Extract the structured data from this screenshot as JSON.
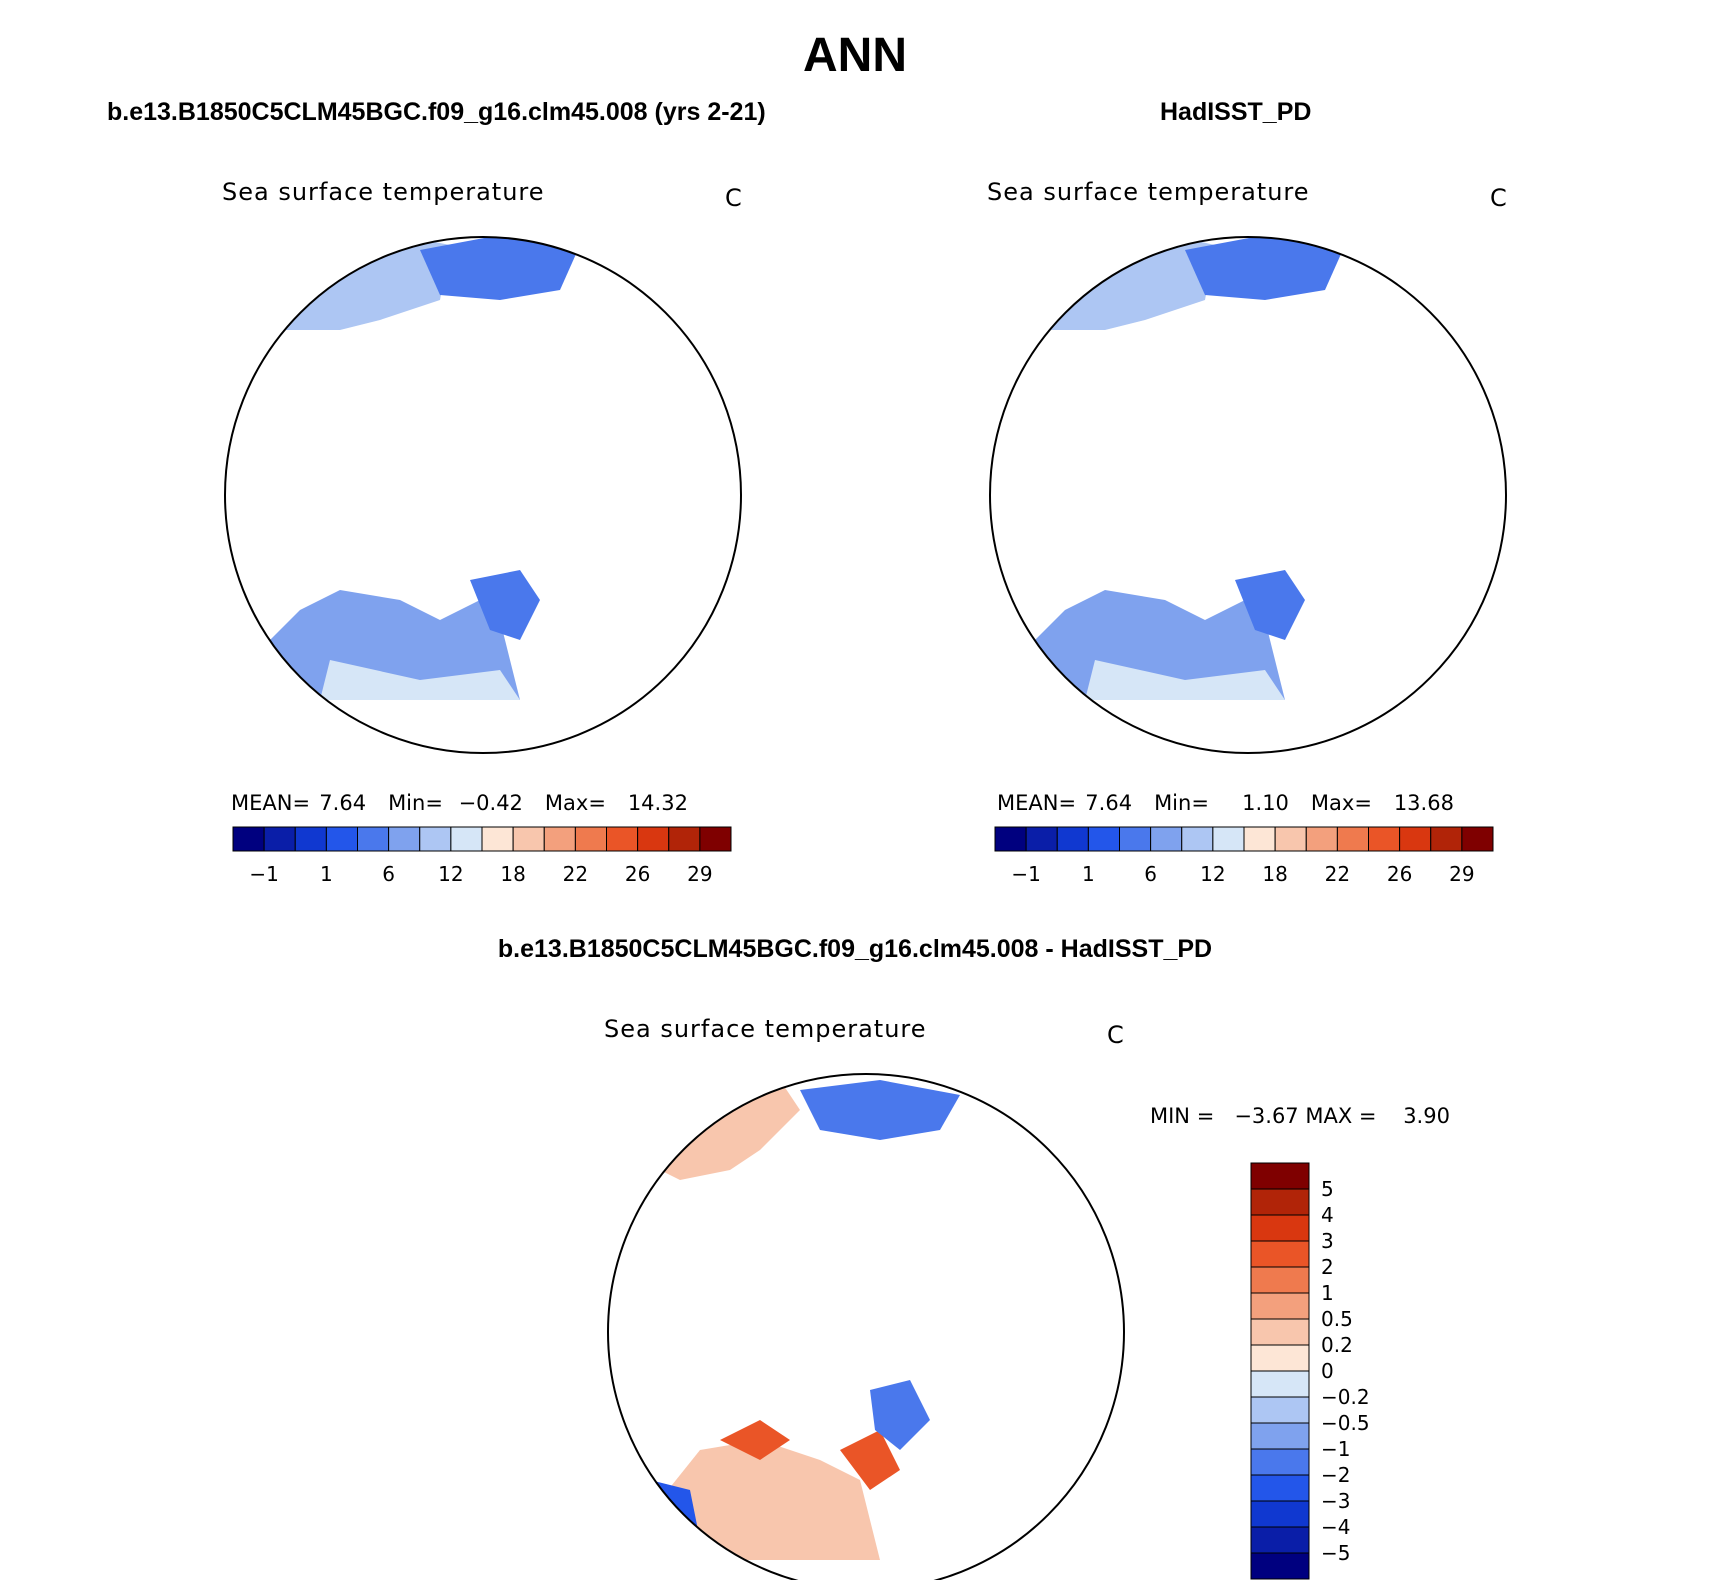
{
  "figure": {
    "title": "ANN"
  },
  "panels": [
    {
      "title": "b.e13.B1850C5CLM45BGC.f09_g16.clm45.008 (yrs 2-21)",
      "variable_label": "Sea surface temperature",
      "units": "C",
      "stats": {
        "mean_label": "MEAN=",
        "mean": "7.64",
        "min_label": "Min=",
        "min": "−0.42",
        "max_label": "Max=",
        "max": "14.32"
      }
    },
    {
      "title": "HadISST_PD",
      "variable_label": "Sea surface temperature",
      "units": "C",
      "stats": {
        "mean_label": "MEAN=",
        "mean": "7.64",
        "min_label": "Min=",
        "min": "1.10",
        "max_label": "Max=",
        "max": "13.68"
      }
    },
    {
      "title": "b.e13.B1850C5CLM45BGC.f09_g16.clm45.008 - HadISST_PD",
      "variable_label": "Sea surface temperature",
      "units": "C",
      "stats_text": "MIN =   −3.67 MAX =    3.90"
    }
  ],
  "colorbar_abs": {
    "colors": [
      "#00007f",
      "#0a1ea8",
      "#1038d0",
      "#2356ea",
      "#4a78ec",
      "#7fa2ee",
      "#adc6f3",
      "#d6e6f7",
      "#fde6d6",
      "#f8c6ad",
      "#f3a07d",
      "#ef7a4e",
      "#ea5527",
      "#d93710",
      "#b12408",
      "#7f0000"
    ],
    "tick_labels": [
      "−1",
      "1",
      "6",
      "12",
      "18",
      "22",
      "26",
      "29"
    ]
  },
  "colorbar_diff": {
    "colors": [
      "#00007f",
      "#0a1ea8",
      "#1038d0",
      "#2356ea",
      "#4a78ec",
      "#7fa2ee",
      "#adc6f3",
      "#d6e6f7",
      "#fde6d6",
      "#f8c6ad",
      "#f3a07d",
      "#ef7a4e",
      "#ea5527",
      "#d93710",
      "#b12408",
      "#7f0000"
    ],
    "tick_labels": [
      "5",
      "4",
      "3",
      "2",
      "1",
      "0.5",
      "0.2",
      "0",
      "−0.2",
      "−0.5",
      "−1",
      "−2",
      "−3",
      "−4",
      "−5"
    ]
  }
}
